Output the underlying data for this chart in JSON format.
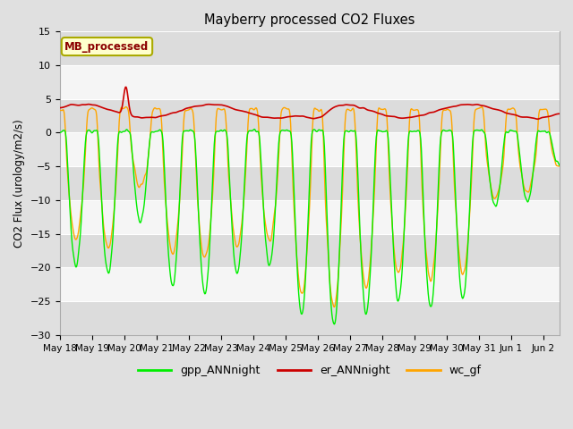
{
  "title": "Mayberry processed CO2 Fluxes",
  "ylabel": "CO2 Flux (urology/m2/s)",
  "ylim": [
    -30,
    15
  ],
  "yticks": [
    -30,
    -25,
    -20,
    -15,
    -10,
    -5,
    0,
    5,
    10,
    15
  ],
  "legend_label": "MB_processed",
  "legend_text_color": "#8B0000",
  "legend_box_color": "#FFFFCC",
  "legend_box_edge": "#AAAA00",
  "line_colors": {
    "gpp": "#00EE00",
    "er": "#CC0000",
    "wc": "#FFA500"
  },
  "fig_bg": "#E0E0E0",
  "plot_bg": "#F5F5F5",
  "band_color": "#DCDCDC",
  "n_points": 800,
  "x_tick_labels": [
    "May 18",
    "May 19",
    "May 20",
    "May 21",
    "May 22",
    "May 23",
    "May 24",
    "May 25",
    "May 26",
    "May 27",
    "May 28",
    "May 29",
    "May 30",
    "May 31",
    "Jun 1",
    "Jun 2"
  ]
}
